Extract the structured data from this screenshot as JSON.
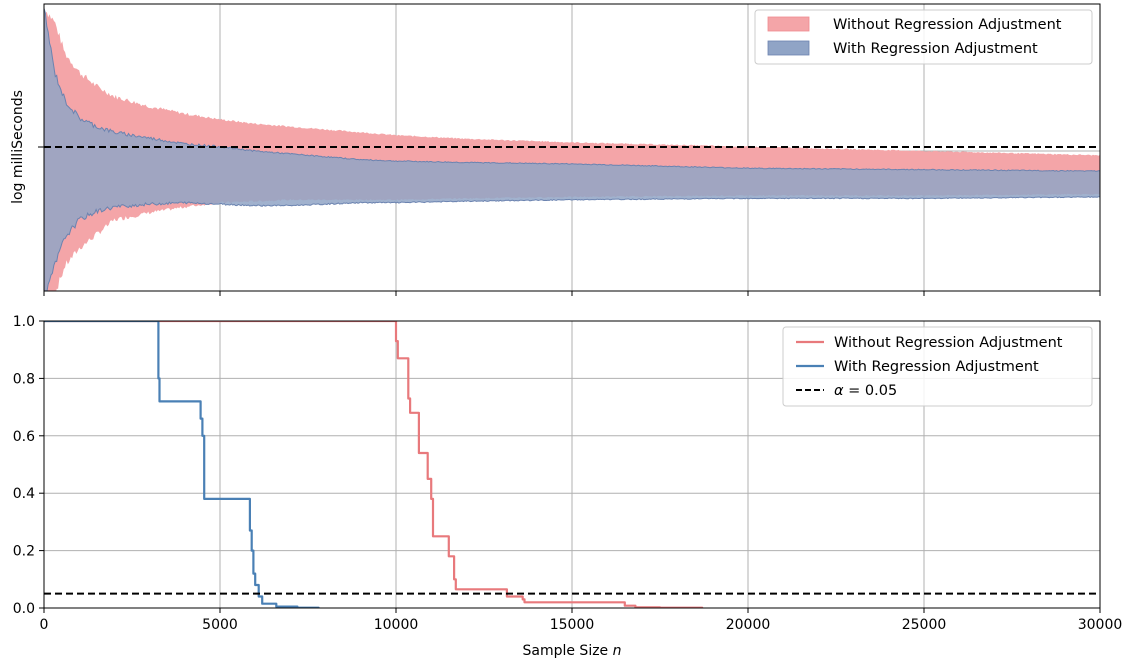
{
  "chart_data": [
    {
      "type": "area",
      "ylabel": "log milliSeconds",
      "xlabel": "",
      "xlim": [
        0,
        30000
      ],
      "x_ticks": [
        0,
        5000,
        10000,
        15000,
        20000,
        25000,
        30000
      ],
      "grid": true,
      "legend_position": "top-right",
      "reference_line": {
        "style": "dashed",
        "color": "#000000"
      },
      "series": [
        {
          "name": "Without Regression Adjustment",
          "color": "#f4a5a8",
          "upper": [
            [
              0,
              1.0
            ],
            [
              300,
              0.9
            ],
            [
              600,
              0.68
            ],
            [
              1000,
              0.55
            ],
            [
              1500,
              0.45
            ],
            [
              2000,
              0.38
            ],
            [
              3000,
              0.31
            ],
            [
              4000,
              0.26
            ],
            [
              5000,
              0.22
            ],
            [
              6000,
              0.19
            ],
            [
              7000,
              0.17
            ],
            [
              8000,
              0.15
            ],
            [
              9000,
              0.13
            ],
            [
              10000,
              0.11
            ],
            [
              12000,
              0.085
            ],
            [
              15000,
              0.06
            ],
            [
              20000,
              0.03
            ],
            [
              25000,
              0.0
            ],
            [
              30000,
              -0.03
            ]
          ],
          "lower": [
            [
              0,
              -1.15
            ],
            [
              300,
              -1.0
            ],
            [
              600,
              -0.8
            ],
            [
              1000,
              -0.68
            ],
            [
              1500,
              -0.58
            ],
            [
              2000,
              -0.48
            ],
            [
              3000,
              -0.43
            ],
            [
              4000,
              -0.39
            ],
            [
              5000,
              -0.36
            ],
            [
              6000,
              -0.35
            ],
            [
              7000,
              -0.34
            ],
            [
              8000,
              -0.34
            ],
            [
              9000,
              -0.34
            ],
            [
              10000,
              -0.34
            ],
            [
              12000,
              -0.33
            ],
            [
              15000,
              -0.32
            ],
            [
              20000,
              -0.31
            ],
            [
              25000,
              -0.31
            ],
            [
              30000,
              -0.3
            ]
          ]
        },
        {
          "name": "With Regression Adjustment",
          "color": "#90a4c6",
          "upper": [
            [
              0,
              1.0
            ],
            [
              300,
              0.55
            ],
            [
              600,
              0.35
            ],
            [
              1000,
              0.23
            ],
            [
              1500,
              0.17
            ],
            [
              2000,
              0.13
            ],
            [
              3000,
              0.09
            ],
            [
              4000,
              0.05
            ],
            [
              5000,
              0.03
            ],
            [
              6000,
              0.0
            ],
            [
              7000,
              -0.02
            ],
            [
              8000,
              -0.04
            ],
            [
              9000,
              -0.06
            ],
            [
              10000,
              -0.07
            ],
            [
              12000,
              -0.08
            ],
            [
              15000,
              -0.09
            ],
            [
              20000,
              -0.12
            ],
            [
              25000,
              -0.13
            ],
            [
              30000,
              -0.14
            ]
          ],
          "lower": [
            [
              0,
              -1.05
            ],
            [
              300,
              -0.8
            ],
            [
              600,
              -0.6
            ],
            [
              1000,
              -0.48
            ],
            [
              1500,
              -0.42
            ],
            [
              2000,
              -0.39
            ],
            [
              3000,
              -0.37
            ],
            [
              4000,
              -0.36
            ],
            [
              5000,
              -0.37
            ],
            [
              6000,
              -0.38
            ],
            [
              7000,
              -0.38
            ],
            [
              8000,
              -0.37
            ],
            [
              9000,
              -0.36
            ],
            [
              10000,
              -0.36
            ],
            [
              12000,
              -0.35
            ],
            [
              15000,
              -0.34
            ],
            [
              20000,
              -0.33
            ],
            [
              25000,
              -0.33
            ],
            [
              30000,
              -0.32
            ]
          ]
        }
      ]
    },
    {
      "type": "line",
      "xlabel": "Sample Size n",
      "xlabel_text": "Sample Size",
      "xlabel_var": "n",
      "ylabel": "",
      "xlim": [
        0,
        30000
      ],
      "ylim": [
        0,
        1.0
      ],
      "x_ticks": [
        0,
        5000,
        10000,
        15000,
        20000,
        25000,
        30000
      ],
      "y_ticks": [
        "0.0",
        "0.2",
        "0.4",
        "0.6",
        "0.8",
        "1.0"
      ],
      "grid": true,
      "legend_position": "top-right",
      "series": [
        {
          "name": "Without Regression Adjustment",
          "color": "#e8797c",
          "step": true,
          "points": [
            [
              0,
              1.0
            ],
            [
              9950,
              1.0
            ],
            [
              10000,
              0.93
            ],
            [
              10050,
              0.87
            ],
            [
              10300,
              0.87
            ],
            [
              10350,
              0.73
            ],
            [
              10400,
              0.68
            ],
            [
              10600,
              0.68
            ],
            [
              10650,
              0.54
            ],
            [
              10850,
              0.54
            ],
            [
              10900,
              0.45
            ],
            [
              11000,
              0.38
            ],
            [
              11050,
              0.25
            ],
            [
              11400,
              0.25
            ],
            [
              11500,
              0.18
            ],
            [
              11650,
              0.1
            ],
            [
              11700,
              0.065
            ],
            [
              13100,
              0.065
            ],
            [
              13150,
              0.04
            ],
            [
              13600,
              0.03
            ],
            [
              13650,
              0.02
            ],
            [
              16300,
              0.02
            ],
            [
              16500,
              0.008
            ],
            [
              16800,
              0.002
            ],
            [
              17500,
              0.001
            ],
            [
              18700,
              0.0
            ]
          ]
        },
        {
          "name": "With Regression Adjustment",
          "color": "#4a80b5",
          "step": true,
          "points": [
            [
              0,
              1.0
            ],
            [
              3200,
              1.0
            ],
            [
              3250,
              0.8
            ],
            [
              3280,
              0.72
            ],
            [
              4400,
              0.72
            ],
            [
              4450,
              0.66
            ],
            [
              4500,
              0.6
            ],
            [
              4550,
              0.38
            ],
            [
              5800,
              0.38
            ],
            [
              5850,
              0.27
            ],
            [
              5900,
              0.2
            ],
            [
              5950,
              0.12
            ],
            [
              6000,
              0.08
            ],
            [
              6100,
              0.04
            ],
            [
              6200,
              0.015
            ],
            [
              6600,
              0.005
            ],
            [
              7200,
              0.001
            ],
            [
              7800,
              0.0
            ]
          ]
        },
        {
          "name": "α = 0.05",
          "legend_symbol": "α",
          "legend_text": "= 0.05",
          "color": "#000000",
          "style": "dashed",
          "y": 0.05
        }
      ]
    }
  ]
}
